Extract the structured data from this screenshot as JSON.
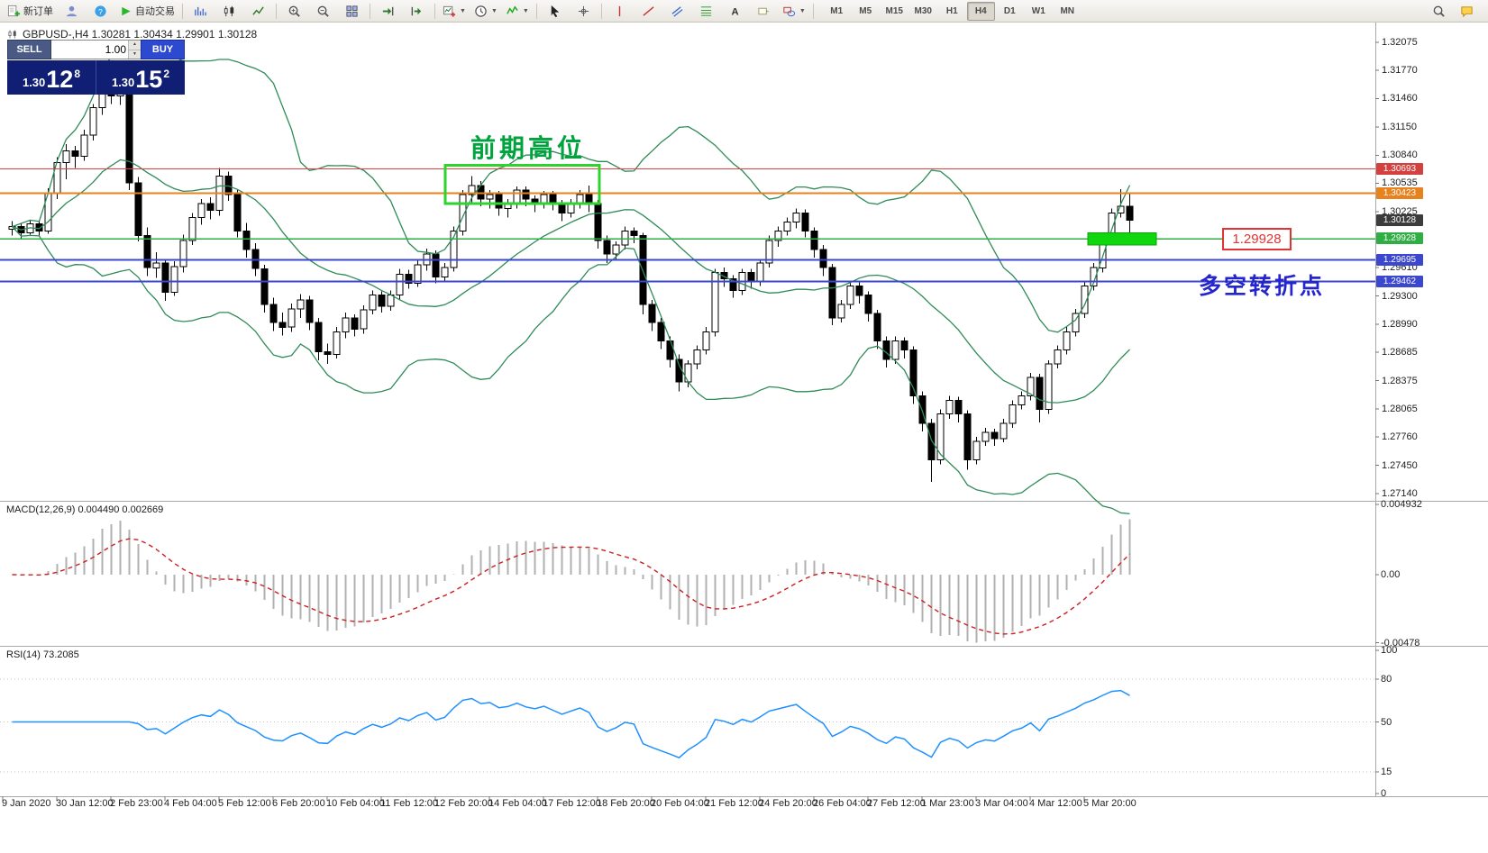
{
  "toolbar": {
    "new_order_label": "新订单",
    "autotrading_label": "自动交易",
    "buttons": [
      {
        "name": "new-order",
        "icon": "new-order",
        "label_key": "new_order_label"
      },
      {
        "name": "accounts",
        "icon": "user"
      },
      {
        "name": "community",
        "icon": "question"
      },
      {
        "name": "autotrading",
        "icon": "play",
        "label_key": "autotrading_label"
      },
      {
        "sep": true
      },
      {
        "name": "bar-chart",
        "icon": "bars"
      },
      {
        "name": "candlestick-chart",
        "icon": "candles"
      },
      {
        "name": "line-chart",
        "icon": "polyline"
      },
      {
        "sep": true
      },
      {
        "name": "zoom-in",
        "icon": "zoom-in"
      },
      {
        "name": "zoom-out",
        "icon": "zoom-out"
      },
      {
        "name": "tile-windows",
        "icon": "grid"
      },
      {
        "sep": true
      },
      {
        "name": "auto-scroll",
        "icon": "autoscroll"
      },
      {
        "name": "chart-shift",
        "icon": "chartshift"
      },
      {
        "sep": true
      },
      {
        "name": "new-chart",
        "icon": "chart-plus",
        "dropdown": true
      },
      {
        "name": "profiles",
        "icon": "clock",
        "dropdown": true
      },
      {
        "name": "indicators-list",
        "icon": "indicator",
        "dropdown": true
      },
      {
        "sep": true
      },
      {
        "name": "cursor",
        "icon": "cursor"
      },
      {
        "name": "crosshair",
        "icon": "crosshair"
      },
      {
        "sep": true
      },
      {
        "name": "vertical-line",
        "icon": "vline"
      },
      {
        "name": "trendline",
        "icon": "tline"
      },
      {
        "name": "equidistant-channel",
        "icon": "channel"
      },
      {
        "name": "fibonacci",
        "icon": "fibo"
      },
      {
        "name": "text-tool",
        "icon": "text"
      },
      {
        "name": "text-label",
        "icon": "label"
      },
      {
        "name": "shapes",
        "icon": "shapes",
        "dropdown": true
      },
      {
        "sep": true
      }
    ],
    "timeframes": [
      "M1",
      "M5",
      "M15",
      "M30",
      "H1",
      "H4",
      "D1",
      "W1",
      "MN"
    ],
    "active_timeframe": "H4",
    "right_buttons": [
      {
        "name": "search",
        "icon": "search"
      },
      {
        "name": "chat",
        "icon": "chat"
      }
    ]
  },
  "one_click": {
    "sell_label": "SELL",
    "buy_label": "BUY",
    "volume": "1.00",
    "sell_price": {
      "base": "1.30",
      "big": "12",
      "sup": "8"
    },
    "buy_price": {
      "base": "1.30",
      "big": "15",
      "sup": "2"
    }
  },
  "chart": {
    "symbol_line": "GBPUSD-,H4 1.30281 1.30434 1.29901 1.30128"
  },
  "macd_panel": {
    "label": "MACD(12,26,9) 0.004490 0.002669",
    "scale": [
      "0.004932",
      "0.00",
      "-0.00478"
    ]
  },
  "rsi_panel": {
    "label": "RSI(14) 73.2085",
    "scale": [
      "100",
      "80",
      "50",
      "15",
      "0"
    ]
  },
  "annotations": {
    "high_zone": "前期高位",
    "turn_point": "多空转折点",
    "callout": "1.29928"
  },
  "chart_data": {
    "type": "candlestick",
    "symbol": "GBPUSD-",
    "timeframe": "H4",
    "title": "GBPUSD-,H4",
    "current_bar": {
      "open": 1.30281,
      "high": 1.30434,
      "low": 1.29901,
      "close": 1.30128
    },
    "y_axis": {
      "min": 1.2714,
      "max": 1.32075,
      "ticks": [
        "1.32075",
        "1.31770",
        "1.31460",
        "1.31150",
        "1.30840",
        "1.30535",
        "1.30225",
        "1.29610",
        "1.29300",
        "1.28990",
        "1.28685",
        "1.28375",
        "1.28065",
        "1.27760",
        "1.27450",
        "1.27140"
      ]
    },
    "x_axis": {
      "labels": [
        "9 Jan 2020",
        "30 Jan 12:00",
        "2 Feb 23:00",
        "4 Feb 04:00",
        "5 Feb 12:00",
        "6 Feb 20:00",
        "10 Feb 04:00",
        "11 Feb 12:00",
        "12 Feb 20:00",
        "14 Feb 04:00",
        "17 Feb 12:00",
        "18 Feb 20:00",
        "20 Feb 04:00",
        "21 Feb 12:00",
        "24 Feb 20:00",
        "26 Feb 04:00",
        "27 Feb 12:00",
        "1 Mar 23:00",
        "3 Mar 04:00",
        "4 Mar 12:00",
        "5 Mar 20:00"
      ]
    },
    "price_tags": [
      {
        "text": "1.30693",
        "color": "#d34040"
      },
      {
        "text": "1.30423",
        "color": "#e8821e"
      },
      {
        "text": "1.30128",
        "color": "#3c3c3c"
      },
      {
        "text": "1.29928",
        "color": "#2fae44"
      },
      {
        "text": "1.29695",
        "color": "#3c47cf"
      },
      {
        "text": "1.29462",
        "color": "#3c47cf"
      }
    ],
    "hlines": [
      {
        "price": 1.30693,
        "color": "#e04040",
        "width": 1
      },
      {
        "price": 1.30423,
        "color": "#e8821e",
        "width": 2
      },
      {
        "price": 1.29928,
        "color": "#2fae44",
        "width": 1.5
      },
      {
        "price": 1.29695,
        "color": "#3c47cf",
        "width": 2
      },
      {
        "price": 1.29462,
        "color": "#3c47cf",
        "width": 2
      }
    ],
    "range_box": {
      "from_bar": 49,
      "to_bar": 65,
      "price_top": 1.3073,
      "price_bottom": 1.3031,
      "color": "#2fd32f"
    },
    "support_zone": {
      "from_bar": 120,
      "to_bar": 127,
      "price_top": 1.2999,
      "price_bottom": 1.2986,
      "color": "#0fd60f"
    },
    "indicators": {
      "bollinger": {
        "period": 20,
        "deviation": 2,
        "color": "#2e8b57"
      },
      "macd": {
        "fast": 12,
        "slow": 26,
        "signal": 9,
        "values_label": "0.004490 0.002669",
        "scale_max": 0.004932,
        "scale_min": -0.00478,
        "histogram_color": "#b0b0b0",
        "signal_color": "#cc2020"
      },
      "rsi": {
        "period": 14,
        "value": 73.2085,
        "levels": [
          80,
          50,
          15
        ],
        "color": "#1e90ff"
      }
    },
    "ohlc": [
      [
        1.3003,
        1.3012,
        1.2996,
        1.3006
      ],
      [
        1.3006,
        1.301,
        1.2993,
        1.2999
      ],
      [
        1.2999,
        1.3013,
        1.2997,
        1.3009
      ],
      [
        1.3009,
        1.3013,
        1.2995,
        1.3001
      ],
      [
        1.3001,
        1.3048,
        1.2998,
        1.3042
      ],
      [
        1.3042,
        1.3082,
        1.3036,
        1.3076
      ],
      [
        1.3076,
        1.3096,
        1.3058,
        1.3089
      ],
      [
        1.3089,
        1.3094,
        1.307,
        1.3083
      ],
      [
        1.3083,
        1.3112,
        1.3078,
        1.3106
      ],
      [
        1.3106,
        1.314,
        1.31,
        1.3136
      ],
      [
        1.3136,
        1.3185,
        1.3128,
        1.3176
      ],
      [
        1.3176,
        1.3181,
        1.314,
        1.3149
      ],
      [
        1.3149,
        1.3162,
        1.3139,
        1.3156
      ],
      [
        1.3156,
        1.3158,
        1.3046,
        1.3054
      ],
      [
        1.3054,
        1.306,
        1.299,
        1.2996
      ],
      [
        1.2996,
        1.3005,
        1.2952,
        1.2961
      ],
      [
        1.2961,
        1.2978,
        1.295,
        1.2966
      ],
      [
        1.2966,
        1.297,
        1.2925,
        1.2934
      ],
      [
        1.2934,
        1.2968,
        1.293,
        1.2962
      ],
      [
        1.2962,
        1.2997,
        1.2956,
        1.2991
      ],
      [
        1.2991,
        1.3021,
        1.2986,
        1.3016
      ],
      [
        1.3016,
        1.3036,
        1.3008,
        1.3031
      ],
      [
        1.3031,
        1.3038,
        1.3014,
        1.3024
      ],
      [
        1.3024,
        1.307,
        1.3018,
        1.3061
      ],
      [
        1.3061,
        1.3066,
        1.3034,
        1.3041
      ],
      [
        1.3041,
        1.3046,
        1.2994,
        1.3001
      ],
      [
        1.3001,
        1.301,
        1.2972,
        1.2981
      ],
      [
        1.2981,
        1.2988,
        1.2952,
        1.296
      ],
      [
        1.296,
        1.2964,
        1.2912,
        1.2921
      ],
      [
        1.2921,
        1.2928,
        1.2892,
        1.2901
      ],
      [
        1.2901,
        1.2912,
        1.2887,
        1.2896
      ],
      [
        1.2896,
        1.2922,
        1.2891,
        1.2916
      ],
      [
        1.2916,
        1.2932,
        1.2906,
        1.2926
      ],
      [
        1.2926,
        1.293,
        1.2893,
        1.2901
      ],
      [
        1.2901,
        1.2906,
        1.286,
        1.2869
      ],
      [
        1.2869,
        1.2878,
        1.2856,
        1.2866
      ],
      [
        1.2866,
        1.2896,
        1.2862,
        1.2891
      ],
      [
        1.2891,
        1.2912,
        1.2884,
        1.2906
      ],
      [
        1.2906,
        1.291,
        1.2886,
        1.2894
      ],
      [
        1.2894,
        1.292,
        1.2889,
        1.2915
      ],
      [
        1.2915,
        1.2936,
        1.291,
        1.2931
      ],
      [
        1.2931,
        1.2935,
        1.2912,
        1.2919
      ],
      [
        1.2919,
        1.2936,
        1.2914,
        1.2931
      ],
      [
        1.2931,
        1.296,
        1.2926,
        1.2954
      ],
      [
        1.2954,
        1.2959,
        1.2938,
        1.2944
      ],
      [
        1.2944,
        1.297,
        1.294,
        1.2964
      ],
      [
        1.2964,
        1.2982,
        1.2958,
        1.2976
      ],
      [
        1.2976,
        1.298,
        1.2944,
        1.2951
      ],
      [
        1.2951,
        1.2966,
        1.2946,
        1.2961
      ],
      [
        1.2961,
        1.3006,
        1.2957,
        1.3001
      ],
      [
        1.3001,
        1.3046,
        1.2996,
        1.3041
      ],
      [
        1.3041,
        1.3061,
        1.3032,
        1.3051
      ],
      [
        1.3051,
        1.3056,
        1.3028,
        1.3036
      ],
      [
        1.3036,
        1.3046,
        1.3026,
        1.3041
      ],
      [
        1.3041,
        1.3045,
        1.3018,
        1.3026
      ],
      [
        1.3026,
        1.3036,
        1.3016,
        1.3031
      ],
      [
        1.3031,
        1.305,
        1.3026,
        1.3046
      ],
      [
        1.3046,
        1.305,
        1.3028,
        1.3036
      ],
      [
        1.3036,
        1.304,
        1.3022,
        1.3031
      ],
      [
        1.3031,
        1.3045,
        1.3026,
        1.3041
      ],
      [
        1.3041,
        1.3045,
        1.3024,
        1.3031
      ],
      [
        1.3031,
        1.3035,
        1.3012,
        1.3021
      ],
      [
        1.3021,
        1.3036,
        1.3016,
        1.3031
      ],
      [
        1.3031,
        1.3046,
        1.3026,
        1.3041
      ],
      [
        1.3041,
        1.3051,
        1.3022,
        1.3031
      ],
      [
        1.3031,
        1.3035,
        1.2982,
        1.2991
      ],
      [
        1.2991,
        1.2996,
        1.2966,
        1.2976
      ],
      [
        1.2976,
        1.299,
        1.297,
        1.2986
      ],
      [
        1.2986,
        1.3006,
        1.2981,
        1.3001
      ],
      [
        1.3001,
        1.3005,
        1.2988,
        1.2996
      ],
      [
        1.2996,
        1.2999,
        1.291,
        1.2921
      ],
      [
        1.2921,
        1.2926,
        1.2892,
        1.2901
      ],
      [
        1.2901,
        1.2906,
        1.2872,
        1.2881
      ],
      [
        1.2881,
        1.2886,
        1.2852,
        1.2861
      ],
      [
        1.2861,
        1.2866,
        1.2826,
        1.2836
      ],
      [
        1.2836,
        1.286,
        1.283,
        1.2856
      ],
      [
        1.2856,
        1.2876,
        1.285,
        1.2871
      ],
      [
        1.2871,
        1.2896,
        1.2866,
        1.2891
      ],
      [
        1.2891,
        1.296,
        1.2886,
        1.2956
      ],
      [
        1.2956,
        1.2961,
        1.294,
        1.2949
      ],
      [
        1.2949,
        1.2953,
        1.2928,
        1.2936
      ],
      [
        1.2936,
        1.296,
        1.2931,
        1.2956
      ],
      [
        1.2956,
        1.296,
        1.2938,
        1.2946
      ],
      [
        1.2946,
        1.297,
        1.2941,
        1.2966
      ],
      [
        1.2966,
        1.2996,
        1.2961,
        1.2991
      ],
      [
        1.2991,
        1.3006,
        1.2984,
        1.3001
      ],
      [
        1.3001,
        1.3016,
        1.2996,
        1.3011
      ],
      [
        1.3011,
        1.3026,
        1.3004,
        1.3021
      ],
      [
        1.3021,
        1.3025,
        1.2994,
        1.3001
      ],
      [
        1.3001,
        1.3005,
        1.2972,
        1.2981
      ],
      [
        1.2981,
        1.2986,
        1.2952,
        1.2961
      ],
      [
        1.2961,
        1.2965,
        1.2898,
        1.2906
      ],
      [
        1.2906,
        1.2926,
        1.2901,
        1.2921
      ],
      [
        1.2921,
        1.2946,
        1.2916,
        1.2941
      ],
      [
        1.2941,
        1.2945,
        1.2922,
        1.2931
      ],
      [
        1.2931,
        1.2935,
        1.2902,
        1.2911
      ],
      [
        1.2911,
        1.2915,
        1.2872,
        1.2881
      ],
      [
        1.2881,
        1.2886,
        1.2852,
        1.2861
      ],
      [
        1.2861,
        1.2886,
        1.2856,
        1.2881
      ],
      [
        1.2881,
        1.2885,
        1.2862,
        1.2871
      ],
      [
        1.2871,
        1.2875,
        1.2812,
        1.2821
      ],
      [
        1.2821,
        1.2826,
        1.2782,
        1.2791
      ],
      [
        1.2791,
        1.2796,
        1.2727,
        1.2751
      ],
      [
        1.2751,
        1.2806,
        1.2746,
        1.2801
      ],
      [
        1.2801,
        1.2821,
        1.2796,
        1.2816
      ],
      [
        1.2816,
        1.282,
        1.2792,
        1.2801
      ],
      [
        1.2801,
        1.2805,
        1.274,
        1.2751
      ],
      [
        1.2751,
        1.2776,
        1.2746,
        1.2771
      ],
      [
        1.2771,
        1.2786,
        1.2766,
        1.2781
      ],
      [
        1.2781,
        1.2785,
        1.2766,
        1.2774
      ],
      [
        1.2774,
        1.2796,
        1.277,
        1.2791
      ],
      [
        1.2791,
        1.2816,
        1.2786,
        1.2811
      ],
      [
        1.2811,
        1.2826,
        1.2806,
        1.2821
      ],
      [
        1.2821,
        1.2846,
        1.2816,
        1.2841
      ],
      [
        1.2841,
        1.2845,
        1.2792,
        1.2806
      ],
      [
        1.2806,
        1.286,
        1.2801,
        1.2856
      ],
      [
        1.2856,
        1.2876,
        1.2851,
        1.2871
      ],
      [
        1.2871,
        1.2896,
        1.2866,
        1.2891
      ],
      [
        1.2891,
        1.2916,
        1.2886,
        1.2911
      ],
      [
        1.2911,
        1.2946,
        1.2906,
        1.2941
      ],
      [
        1.2941,
        1.2966,
        1.2936,
        1.2961
      ],
      [
        1.2961,
        1.2996,
        1.2956,
        1.2991
      ],
      [
        1.2991,
        1.3026,
        1.2986,
        1.3021
      ],
      [
        1.3021,
        1.3047,
        1.3016,
        1.30281
      ],
      [
        1.30281,
        1.30434,
        1.29901,
        1.30128
      ]
    ]
  }
}
